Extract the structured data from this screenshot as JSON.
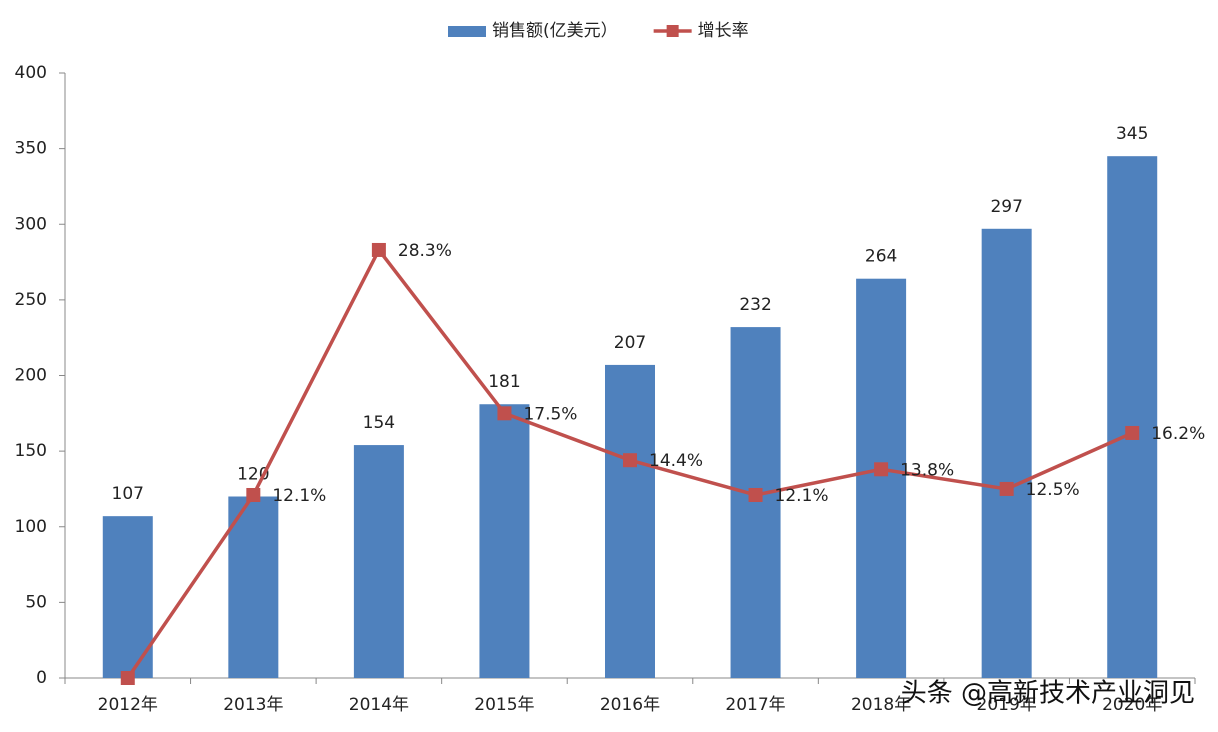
{
  "chart_data": {
    "type": "bar-line",
    "categories": [
      "2012年",
      "2013年",
      "2014年",
      "2015年",
      "2016年",
      "2017年",
      "2018年",
      "2019年",
      "2020年"
    ],
    "series": [
      {
        "name": "销售额(亿美元）",
        "type": "bar",
        "color": "#4f81bd",
        "values": [
          107,
          120,
          154,
          181,
          207,
          232,
          264,
          297,
          345
        ]
      },
      {
        "name": "增长率",
        "type": "line",
        "axis": "y2",
        "color": "#c0504d",
        "values": [
          0,
          12.1,
          28.3,
          17.5,
          14.4,
          12.1,
          13.8,
          12.5,
          16.2
        ],
        "value_labels": [
          null,
          "12.1%",
          "28.3%",
          "17.5%",
          "14.4%",
          "12.1%",
          "13.8%",
          "12.5%",
          "16.2%"
        ]
      }
    ],
    "ylim": [
      0,
      400
    ],
    "yticks": [
      0,
      50,
      100,
      150,
      200,
      250,
      300,
      350,
      400
    ],
    "y2lim": [
      0,
      40
    ],
    "legend": "top",
    "watermark": "头条 @高新技术产业洞见"
  }
}
